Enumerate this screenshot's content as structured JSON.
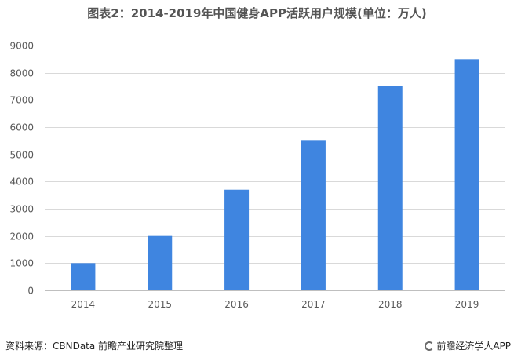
{
  "chart_data": {
    "type": "bar",
    "title": "图表2：2014-2019年中国健身APP活跃用户规模(单位：万人)",
    "categories": [
      "2014",
      "2015",
      "2016",
      "2017",
      "2018",
      "2019"
    ],
    "values": [
      1000,
      2000,
      3700,
      5500,
      7500,
      8500
    ],
    "y_ticks": [
      "0",
      "1000",
      "2000",
      "3000",
      "4000",
      "5000",
      "6000",
      "7000",
      "8000",
      "9000"
    ],
    "ylim": [
      0,
      9000
    ],
    "grid": true,
    "legend": "none",
    "bar_color": "#3f85e0"
  },
  "footer": {
    "source": "资料来源：CBNData 前瞻产业研究院整理",
    "brand": "前瞻经济学人APP"
  }
}
